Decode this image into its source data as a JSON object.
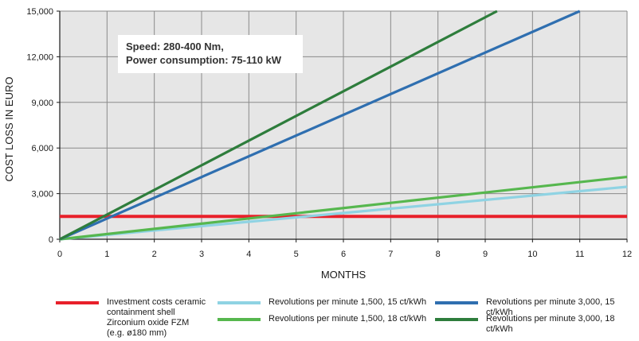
{
  "chart_data": {
    "type": "line",
    "xlabel": "MONTHS",
    "ylabel": "COST LOSS IN EURO",
    "xlim": [
      0,
      12
    ],
    "ylim": [
      0,
      15000
    ],
    "x_ticks": [
      0,
      1,
      2,
      3,
      4,
      5,
      6,
      7,
      8,
      9,
      10,
      11,
      12
    ],
    "y_ticks": [
      0,
      3000,
      6000,
      9000,
      12000,
      15000
    ],
    "y_tick_labels": [
      "0",
      "3,000",
      "6,000",
      "9,000",
      "12,000",
      "15,000"
    ],
    "grid": true,
    "plot_background": "#e6e6e6",
    "annotation": [
      "Speed: 280-400 Nm,",
      "Power consumption: 75-110 kW"
    ],
    "legend_position": "bottom",
    "series": [
      {
        "name": "Investment costs ceramic\ncontainment shell\nZirconium oxide FZM\n(e.g. ø180 mm)",
        "color": "#e8202a",
        "x": [
          0,
          12
        ],
        "y": [
          1500,
          1500
        ]
      },
      {
        "name": "Revolutions per minute 1,500, 15 ct/kWh",
        "color": "#8fd3e3",
        "x": [
          0,
          12
        ],
        "y": [
          0,
          3450
        ]
      },
      {
        "name": "Revolutions per minute 1,500, 18 ct/kWh",
        "color": "#56b74e",
        "x": [
          0,
          12
        ],
        "y": [
          0,
          4100
        ]
      },
      {
        "name": "Revolutions per minute 3,000, 15 ct/kWh",
        "color": "#2f6fb0",
        "x": [
          0,
          11
        ],
        "y": [
          0,
          15000
        ]
      },
      {
        "name": "Revolutions per minute 3,000, 18 ct/kWh",
        "color": "#2e7d3c",
        "x": [
          0,
          9.25
        ],
        "y": [
          0,
          15000
        ]
      }
    ]
  }
}
